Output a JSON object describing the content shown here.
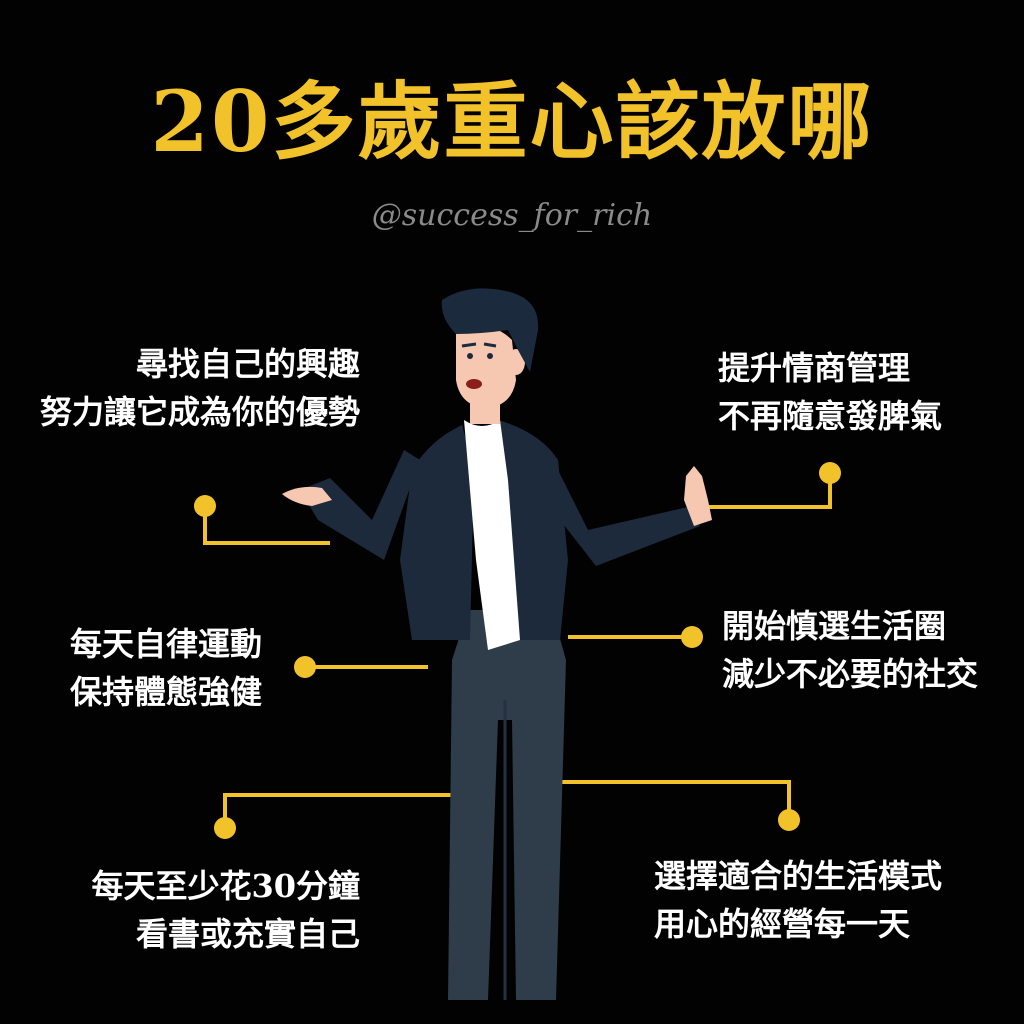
{
  "header": {
    "title": "20多歲重心該放哪",
    "handle": "@success_for_rich"
  },
  "tips": [
    {
      "line1": "尋找自己的興趣",
      "line2": "努力讓它成為你的優勢"
    },
    {
      "line1": "提升情商管理",
      "line2": "不再隨意發脾氣"
    },
    {
      "line1": "每天自律運動",
      "line2": "保持體態強健"
    },
    {
      "line1": "開始慎選生活圈",
      "line2": "減少不必要的社交"
    },
    {
      "line1": "每天至少花30分鐘",
      "line2": "看書或充實自己"
    },
    {
      "line1": "選擇適合的生活模式",
      "line2": "用心的經營每一天"
    }
  ],
  "colors": {
    "background": "#020202",
    "accent": "#f2c22b",
    "text": "#ffffff",
    "handle": "#8a8a8a",
    "jacket": "#1d2a3b",
    "pants": "#2f3c4a",
    "skin": "#f6c8b2",
    "hair": "#1c2a3d"
  }
}
